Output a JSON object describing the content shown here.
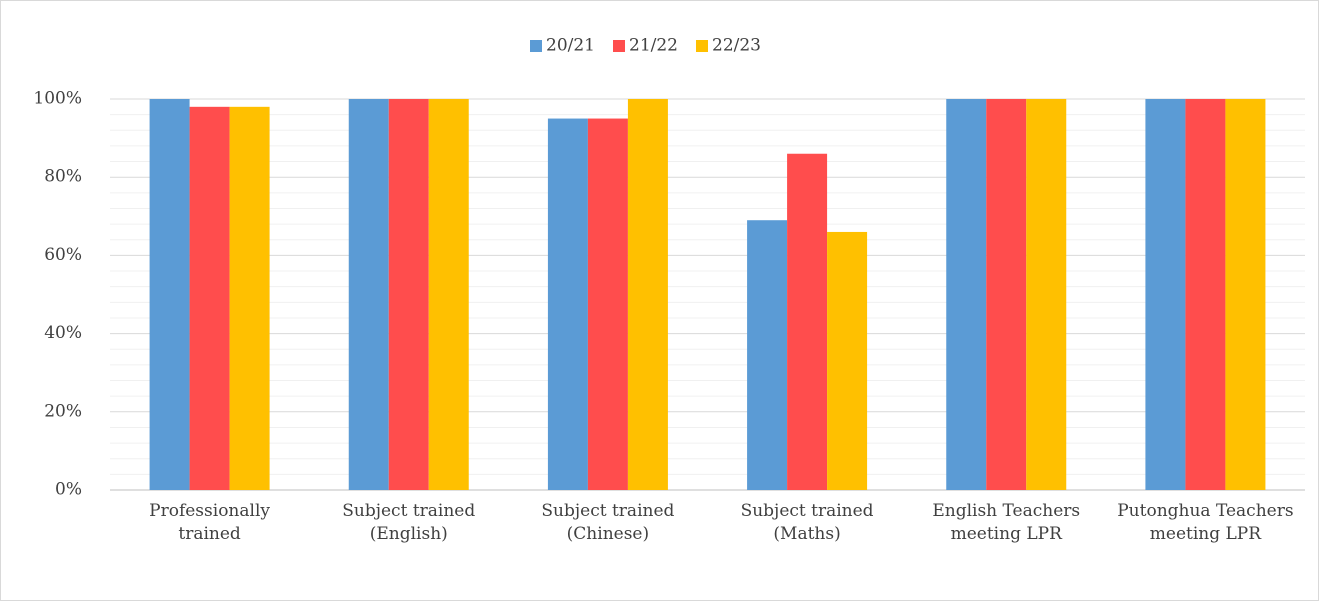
{
  "chart_data": {
    "type": "bar",
    "categories": [
      "Professionally trained",
      "Subject trained (English)",
      "Subject trained (Chinese)",
      "Subject trained (Maths)",
      "English Teachers meeting LPR",
      "Putonghua Teachers meeting LPR"
    ],
    "series": [
      {
        "name": "20/21",
        "color": "#5b9bd5",
        "values": [
          100,
          100,
          95,
          69,
          100,
          100
        ]
      },
      {
        "name": "21/22",
        "color": "#ff4d4d",
        "values": [
          98,
          100,
          95,
          86,
          100,
          100
        ]
      },
      {
        "name": "22/23",
        "color": "#ffc000",
        "values": [
          98,
          100,
          100,
          66,
          100,
          100
        ]
      }
    ],
    "ylim": [
      0,
      100
    ],
    "yticks": [
      {
        "value": 0,
        "label": "0%"
      },
      {
        "value": 20,
        "label": "20%"
      },
      {
        "value": 40,
        "label": "40%"
      },
      {
        "value": 60,
        "label": "60%"
      },
      {
        "value": 80,
        "label": "80%"
      },
      {
        "value": 100,
        "label": "100%"
      }
    ],
    "grid": true,
    "legend": "top"
  }
}
